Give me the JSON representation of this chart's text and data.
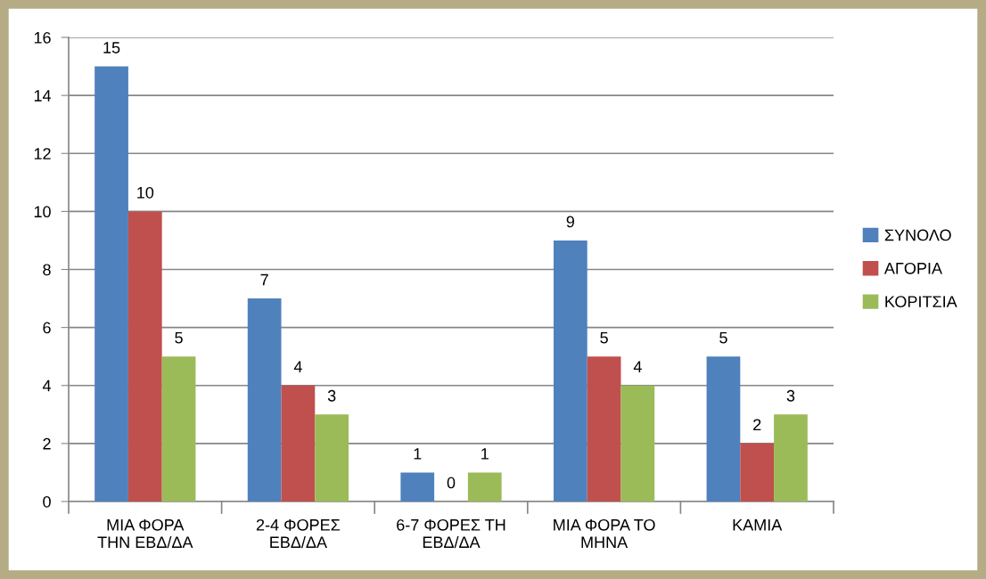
{
  "chart_data": {
    "type": "bar",
    "categories": [
      "ΜΙΑ ΦΟΡΑ\nΤΗΝ ΕΒΔ/ΔΑ",
      "2-4 ΦΟΡΕΣ\nΕΒΔ/ΔΑ",
      "6-7 ΦΟΡΕΣ ΤΗ\nΕΒΔ/ΔΑ",
      "ΜΙΑ ΦΟΡΑ ΤΟ\nΜΗΝΑ",
      "ΚΑΜΙΑ"
    ],
    "series": [
      {
        "name": "ΣΥΝΟΛΟ",
        "color": "#4f81bd",
        "values": [
          15,
          7,
          1,
          9,
          5
        ]
      },
      {
        "name": "ΑΓΟΡΙΑ",
        "color": "#c0504d",
        "values": [
          10,
          4,
          0,
          5,
          2
        ]
      },
      {
        "name": "ΚΟΡΙΤΣΙΑ",
        "color": "#9bbb59",
        "values": [
          5,
          3,
          1,
          4,
          3
        ]
      }
    ],
    "ylim": [
      0,
      16
    ],
    "yticks": [
      0,
      2,
      4,
      6,
      8,
      10,
      12,
      14,
      16
    ],
    "grid": "y",
    "legend": "right",
    "data_labels": true
  }
}
